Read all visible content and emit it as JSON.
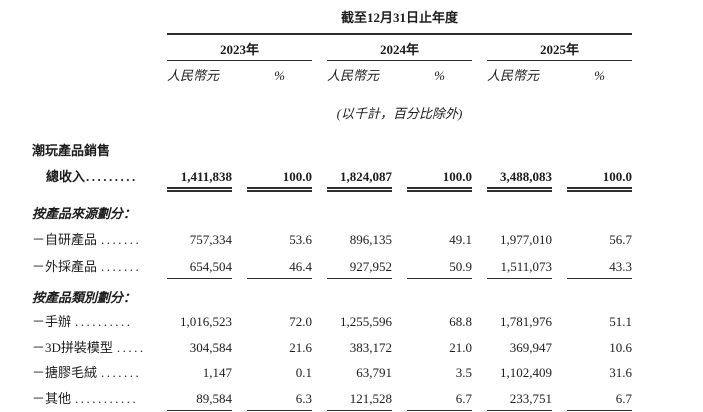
{
  "table": {
    "period_header": "截至12月31日止年度",
    "years": [
      "2023年",
      "2024年",
      "2025年"
    ],
    "currency_label": "人民幣元",
    "percent_label": "%",
    "note": "(以千計，百分比除外)",
    "rows": [
      {
        "label": "潮玩產品銷售"
      },
      {
        "label": "總收入",
        "dots": ".........",
        "values": [
          "1,411,838",
          "100.0",
          "1,824,087",
          "100.0",
          "3,488,083",
          "100.0"
        ]
      },
      {
        "label": "按產品來源劃分："
      },
      {
        "label": "－自研產品",
        "dots": ".......",
        "values": [
          "757,334",
          "53.6",
          "896,135",
          "49.1",
          "1,977,010",
          "56.7"
        ]
      },
      {
        "label": "－外採產品",
        "dots": ".......",
        "values": [
          "654,504",
          "46.4",
          "927,952",
          "50.9",
          "1,511,073",
          "43.3"
        ]
      },
      {
        "label": "按產品類別劃分："
      },
      {
        "label": "－手辦",
        "dots": "..........",
        "values": [
          "1,016,523",
          "72.0",
          "1,255,596",
          "68.8",
          "1,781,976",
          "51.1"
        ]
      },
      {
        "label": "－3D拼裝模型",
        "dots": ".....",
        "values": [
          "304,584",
          "21.6",
          "383,172",
          "21.0",
          "369,947",
          "10.6"
        ]
      },
      {
        "label": "－搪膠毛絨",
        "dots": ".......",
        "values": [
          "1,147",
          "0.1",
          "63,791",
          "3.5",
          "1,102,409",
          "31.6"
        ]
      },
      {
        "label": "－其他",
        "dots": "...........",
        "values": [
          "89,584",
          "6.3",
          "121,528",
          "6.7",
          "233,751",
          "6.7"
        ]
      }
    ]
  }
}
